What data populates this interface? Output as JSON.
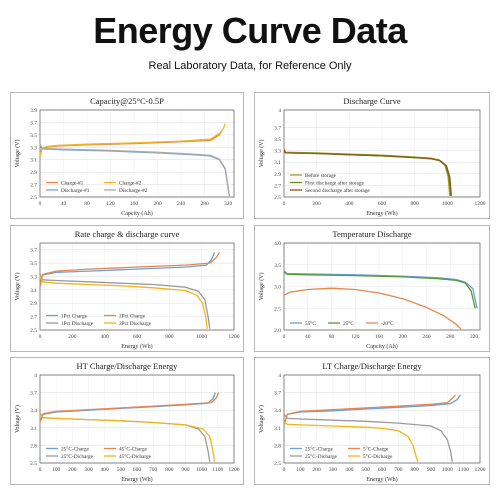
{
  "header": {
    "title": "Energy Curve Data",
    "subtitle": "Real Laboratory Data, for Reference Only"
  },
  "chart_data": [
    {
      "type": "line",
      "title": "Capacity@25°C-0.5P",
      "xlabel": "Capcity (Ah)",
      "ylabel": "Voltage (V)",
      "xlim": [
        0,
        330
      ],
      "ylim": [
        2.5,
        3.9
      ],
      "xticks": [
        0,
        40,
        80,
        120,
        160,
        200,
        240,
        280,
        320
      ],
      "yticks": [
        2.5,
        2.7,
        2.9,
        3.1,
        3.3,
        3.5,
        3.7,
        3.9
      ],
      "legend": {
        "position": "bottom-left",
        "columns": 2
      },
      "series": [
        {
          "name": "Charge-#1",
          "color": "#e8874a",
          "x": [
            0,
            3,
            10,
            30,
            80,
            160,
            240,
            290,
            305,
            310
          ],
          "y": [
            3.15,
            3.27,
            3.3,
            3.32,
            3.34,
            3.36,
            3.39,
            3.41,
            3.5,
            3.58
          ]
        },
        {
          "name": "Discharge-#1",
          "color": "#7aa6d6",
          "x": [
            0,
            3,
            10,
            40,
            120,
            200,
            260,
            290,
            305,
            315,
            322
          ],
          "y": [
            3.35,
            3.28,
            3.27,
            3.26,
            3.24,
            3.21,
            3.18,
            3.16,
            3.1,
            2.95,
            2.52
          ]
        },
        {
          "name": "Charge-#2",
          "color": "#f2b51c",
          "x": [
            0,
            3,
            10,
            30,
            80,
            160,
            240,
            290,
            305,
            312,
            315
          ],
          "y": [
            3.15,
            3.28,
            3.31,
            3.33,
            3.35,
            3.37,
            3.4,
            3.43,
            3.52,
            3.6,
            3.68
          ]
        },
        {
          "name": "Discharge-#2",
          "color": "#a9a9a9",
          "x": [
            0,
            3,
            10,
            40,
            120,
            200,
            260,
            290,
            305,
            315,
            322
          ],
          "y": [
            3.36,
            3.29,
            3.28,
            3.27,
            3.25,
            3.22,
            3.19,
            3.17,
            3.11,
            2.96,
            2.52
          ]
        }
      ]
    },
    {
      "type": "line",
      "title": "Discharge Curve",
      "xlabel": "Energy (Wh)",
      "ylabel": "Voltage (V)",
      "xlim": [
        0,
        1200
      ],
      "ylim": [
        2.5,
        4.0
      ],
      "xticks": [
        0,
        200,
        400,
        600,
        800,
        1000,
        1200
      ],
      "yticks": [
        2.5,
        2.7,
        2.9,
        3.1,
        3.3,
        3.5,
        3.7,
        4.0
      ],
      "ytick_labels": [
        "2.5",
        "2.7",
        "2.9",
        "3.1",
        "3.3",
        "3.5",
        "3.7",
        "4"
      ],
      "legend": {
        "position": "bottom-left",
        "columns": 1
      },
      "series": [
        {
          "name": "Before storage",
          "color": "#9aa62c",
          "x": [
            0,
            10,
            200,
            400,
            600,
            800,
            900,
            950,
            985,
            1005,
            1015
          ],
          "y": [
            3.32,
            3.27,
            3.26,
            3.24,
            3.22,
            3.19,
            3.17,
            3.14,
            3.05,
            2.85,
            2.52
          ]
        },
        {
          "name": "First discharge after storage",
          "color": "#6d8a1e",
          "x": [
            0,
            10,
            200,
            400,
            600,
            800,
            900,
            950,
            990,
            1010,
            1020
          ],
          "y": [
            3.3,
            3.26,
            3.25,
            3.23,
            3.21,
            3.18,
            3.16,
            3.13,
            3.04,
            2.84,
            2.52
          ]
        },
        {
          "name": "Second discharge after storage",
          "color": "#8b5a16",
          "x": [
            0,
            10,
            200,
            400,
            600,
            800,
            900,
            955,
            995,
            1015,
            1025
          ],
          "y": [
            3.31,
            3.26,
            3.25,
            3.23,
            3.21,
            3.18,
            3.16,
            3.13,
            3.04,
            2.84,
            2.52
          ]
        }
      ]
    },
    {
      "type": "line",
      "title": "Rate charge & discharge curve",
      "xlabel": "Energy (Wh)",
      "ylabel": "Voltage (V)",
      "xlim": [
        0,
        1200
      ],
      "ylim": [
        2.5,
        3.8
      ],
      "xticks": [
        0,
        200,
        400,
        600,
        800,
        1000,
        1200
      ],
      "yticks": [
        2.5,
        2.7,
        2.9,
        3.1,
        3.3,
        3.5,
        3.7
      ],
      "ytick_labels": [
        "2.5",
        "2.7",
        "2.9",
        "3.1",
        "3.3",
        "3.5",
        "3.7"
      ],
      "legend": {
        "position": "bottom-left",
        "columns": 2
      },
      "series": [
        {
          "name": "1Pct Charge",
          "color": "#6aa1d8",
          "x": [
            0,
            15,
            100,
            300,
            500,
            700,
            900,
            1030,
            1060,
            1080
          ],
          "y": [
            3.15,
            3.32,
            3.36,
            3.38,
            3.4,
            3.42,
            3.44,
            3.47,
            3.55,
            3.66
          ]
        },
        {
          "name": "1Pct Discharge",
          "color": "#9a9a9a",
          "x": [
            0,
            15,
            100,
            300,
            500,
            700,
            900,
            980,
            1020,
            1040,
            1050
          ],
          "y": [
            3.32,
            3.25,
            3.24,
            3.22,
            3.2,
            3.18,
            3.14,
            3.08,
            2.95,
            2.7,
            2.52
          ]
        },
        {
          "name": "2Pct Charge",
          "color": "#e8874a",
          "x": [
            0,
            15,
            100,
            300,
            500,
            700,
            900,
            1050,
            1090,
            1110
          ],
          "y": [
            3.15,
            3.33,
            3.38,
            3.41,
            3.43,
            3.45,
            3.47,
            3.5,
            3.58,
            3.66
          ]
        },
        {
          "name": "2Pct Discharge",
          "color": "#f2b51c",
          "x": [
            0,
            15,
            100,
            300,
            500,
            700,
            900,
            970,
            1005,
            1025,
            1035
          ],
          "y": [
            3.3,
            3.22,
            3.2,
            3.18,
            3.16,
            3.13,
            3.09,
            3.02,
            2.9,
            2.7,
            2.52
          ]
        }
      ]
    },
    {
      "type": "line",
      "title": "Temperature Discharge",
      "xlabel": "Capcity (Ah)",
      "ylabel": "Voltage (V)",
      "xlim": [
        0,
        330
      ],
      "ylim": [
        2.0,
        4.0
      ],
      "xticks": [
        0,
        40,
        80,
        120,
        160,
        200,
        240,
        280,
        320
      ],
      "yticks": [
        2.0,
        2.5,
        3.0,
        3.5,
        4.0
      ],
      "ytick_labels": [
        "2.0",
        "2.5",
        "3.0",
        "3.5",
        "4.0"
      ],
      "legend": {
        "position": "bottom-left",
        "columns": 3
      },
      "series": [
        {
          "name": "55°C",
          "color": "#6aa1d8",
          "x": [
            0,
            5,
            40,
            120,
            200,
            260,
            290,
            305,
            318,
            325
          ],
          "y": [
            3.36,
            3.3,
            3.29,
            3.27,
            3.24,
            3.2,
            3.16,
            3.1,
            2.95,
            2.5
          ]
        },
        {
          "name": "25°C",
          "color": "#5a9a3a",
          "x": [
            0,
            5,
            40,
            120,
            200,
            260,
            290,
            305,
            315,
            322
          ],
          "y": [
            3.34,
            3.28,
            3.27,
            3.25,
            3.22,
            3.18,
            3.14,
            3.08,
            2.9,
            2.5
          ]
        },
        {
          "name": "-20°C",
          "color": "#e8874a",
          "x": [
            0,
            10,
            40,
            80,
            120,
            160,
            200,
            240,
            270,
            290,
            298
          ],
          "y": [
            2.8,
            2.87,
            2.93,
            2.96,
            2.93,
            2.85,
            2.72,
            2.52,
            2.32,
            2.13,
            2.02
          ]
        }
      ]
    },
    {
      "type": "line",
      "title": "HT Charge/Discharge Energy",
      "xlabel": "Energy (Wh)",
      "ylabel": "Voltage (V)",
      "xlim": [
        0,
        1200
      ],
      "ylim": [
        2.5,
        4.0
      ],
      "xticks": [
        0,
        100,
        200,
        300,
        400,
        500,
        600,
        700,
        800,
        900,
        1000,
        1100,
        1200
      ],
      "yticks": [
        2.5,
        2.8,
        3.1,
        3.4,
        3.7,
        4.0
      ],
      "ytick_labels": [
        "2.5",
        "2.8",
        "3.1",
        "3.4",
        "3.7",
        "4"
      ],
      "legend": {
        "position": "bottom-left",
        "columns": 2
      },
      "series": [
        {
          "name": "25°C-Charge",
          "color": "#6aa1d8",
          "x": [
            0,
            20,
            100,
            300,
            500,
            700,
            900,
            1040,
            1070,
            1085
          ],
          "y": [
            3.2,
            3.33,
            3.37,
            3.4,
            3.43,
            3.46,
            3.49,
            3.52,
            3.6,
            3.7
          ]
        },
        {
          "name": "25°C-Dicharge",
          "color": "#9a9a9a",
          "x": [
            0,
            20,
            100,
            300,
            500,
            700,
            900,
            980,
            1020,
            1040,
            1050
          ],
          "y": [
            3.35,
            3.27,
            3.26,
            3.24,
            3.22,
            3.19,
            3.15,
            3.08,
            2.95,
            2.7,
            2.52
          ]
        },
        {
          "name": "45°C-Charge",
          "color": "#e8874a",
          "x": [
            0,
            20,
            100,
            300,
            500,
            700,
            900,
            1060,
            1090,
            1105
          ],
          "y": [
            3.2,
            3.34,
            3.38,
            3.41,
            3.44,
            3.47,
            3.5,
            3.53,
            3.61,
            3.7
          ]
        },
        {
          "name": "45°C-Dicharge",
          "color": "#f2b51c",
          "x": [
            0,
            20,
            100,
            300,
            500,
            700,
            900,
            1010,
            1050,
            1070,
            1080
          ],
          "y": [
            3.33,
            3.27,
            3.26,
            3.24,
            3.22,
            3.19,
            3.15,
            3.08,
            2.95,
            2.7,
            2.52
          ]
        }
      ]
    },
    {
      "type": "line",
      "title": "LT Charge/Discharge Energy",
      "xlabel": "Energy (Wh)",
      "ylabel": "Voltage (V)",
      "xlim": [
        0,
        1200
      ],
      "ylim": [
        2.5,
        4.0
      ],
      "xticks": [
        0,
        100,
        200,
        300,
        400,
        500,
        600,
        700,
        800,
        900,
        1000,
        1100,
        1200
      ],
      "yticks": [
        2.5,
        2.8,
        3.1,
        3.4,
        3.7,
        4.0
      ],
      "ytick_labels": [
        "2.5",
        "2.8",
        "3.1",
        "3.4",
        "3.7",
        "4"
      ],
      "legend": {
        "position": "bottom-left",
        "columns": 2
      },
      "series": [
        {
          "name": "25°C-Charge",
          "color": "#6aa1d8",
          "x": [
            0,
            20,
            100,
            300,
            500,
            700,
            900,
            1020,
            1060,
            1080
          ],
          "y": [
            3.15,
            3.33,
            3.37,
            3.39,
            3.42,
            3.45,
            3.48,
            3.51,
            3.58,
            3.66
          ]
        },
        {
          "name": "25°C-Dicharge",
          "color": "#9a9a9a",
          "x": [
            0,
            20,
            100,
            300,
            500,
            700,
            900,
            960,
            1000,
            1020,
            1030
          ],
          "y": [
            3.33,
            3.26,
            3.25,
            3.23,
            3.21,
            3.18,
            3.13,
            3.05,
            2.9,
            2.7,
            2.52
          ]
        },
        {
          "name": "5°C-Charge",
          "color": "#e8874a",
          "x": [
            0,
            20,
            100,
            300,
            500,
            700,
            900,
            1000,
            1030,
            1050
          ],
          "y": [
            3.15,
            3.33,
            3.38,
            3.41,
            3.44,
            3.47,
            3.5,
            3.53,
            3.6,
            3.66
          ]
        },
        {
          "name": "5°C-Dicharge",
          "color": "#f2b51c",
          "x": [
            0,
            20,
            100,
            300,
            500,
            600,
            700,
            760,
            790,
            810,
            820
          ],
          "y": [
            3.2,
            3.16,
            3.15,
            3.13,
            3.11,
            3.09,
            3.05,
            2.95,
            2.8,
            2.6,
            2.52
          ]
        }
      ]
    }
  ]
}
